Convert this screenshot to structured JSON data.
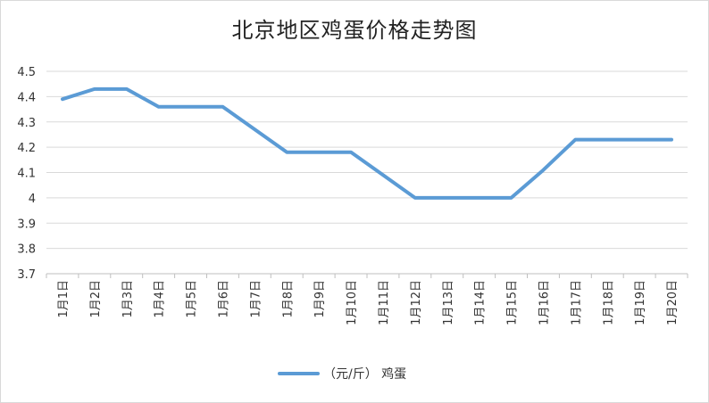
{
  "chart_data": {
    "type": "line",
    "title": "北京地区鸡蛋价格走势图",
    "xlabel": "",
    "ylabel": "",
    "categories": [
      "1月1日",
      "1月2日",
      "1月3日",
      "1月4日",
      "1月5日",
      "1月6日",
      "1月7日",
      "1月8日",
      "1月9日",
      "1月10日",
      "1月11日",
      "1月12日",
      "1月13日",
      "1月14日",
      "1月15日",
      "1月16日",
      "1月17日",
      "1月18日",
      "1月19日",
      "1月20日"
    ],
    "series": [
      {
        "name": "（元/斤） 鸡蛋",
        "values": [
          4.39,
          4.43,
          4.43,
          4.36,
          4.36,
          4.36,
          4.27,
          4.18,
          4.18,
          4.18,
          4.09,
          4.0,
          4.0,
          4.0,
          4.0,
          4.11,
          4.23,
          4.23,
          4.23,
          4.23
        ]
      }
    ],
    "yticks": [
      "3.7",
      "3.8",
      "3.9",
      "4",
      "4.1",
      "4.2",
      "4.3",
      "4.4",
      "4.5"
    ],
    "ylim": [
      3.7,
      4.5
    ],
    "grid": true,
    "legend": "bottom",
    "colors": {
      "line": "#5b9bd5",
      "grid": "#d9d9d9",
      "axis": "#bfbfbf"
    }
  }
}
